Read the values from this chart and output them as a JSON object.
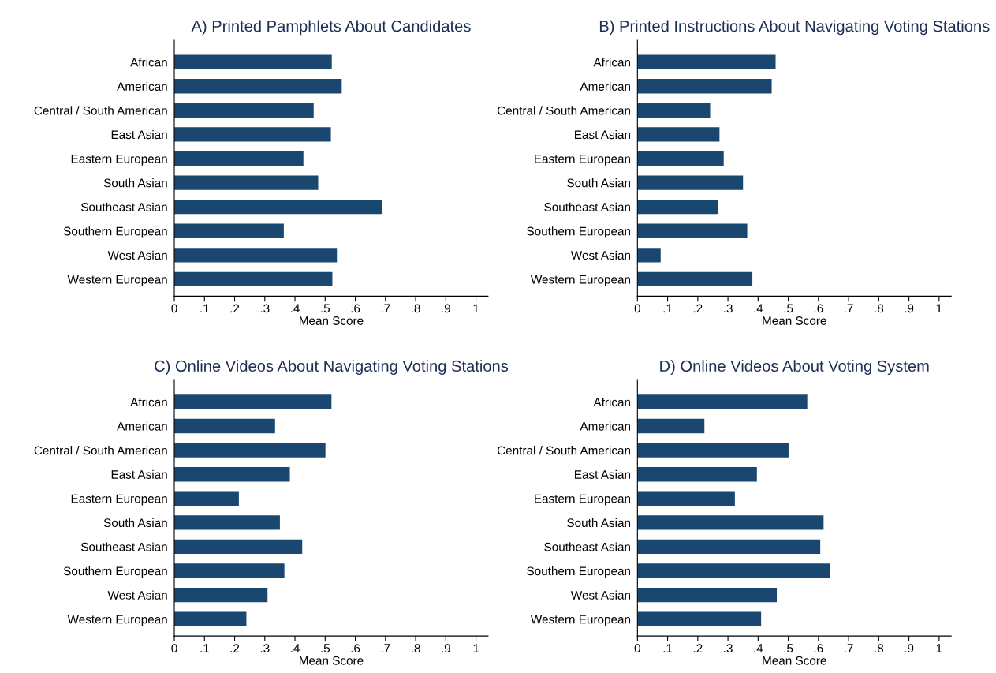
{
  "chart_data": [
    {
      "type": "bar",
      "orientation": "horizontal",
      "title": "A) Printed Pamphlets About Candidates",
      "xlabel": "Mean Score",
      "categories": [
        "African",
        "American",
        "Central / South American",
        "East Asian",
        "Eastern European",
        "South Asian",
        "Southeast Asian",
        "Southern European",
        "West Asian",
        "Western European"
      ],
      "values": [
        0.522,
        0.555,
        0.462,
        0.519,
        0.428,
        0.477,
        0.69,
        0.363,
        0.539,
        0.524
      ],
      "color": "#1a476f",
      "xlim": [
        0,
        1.04
      ],
      "xticks": [
        0,
        {
          "value": 0.1,
          "label": ".1"
        },
        {
          "value": 0.2,
          "label": ".2"
        },
        {
          "value": 0.3,
          "label": ".3"
        },
        {
          "value": 0.4,
          "label": ".4"
        },
        {
          "value": 0.5,
          "label": ".5"
        },
        {
          "value": 0.6,
          "label": ".6"
        },
        {
          "value": 0.7,
          "label": ".7"
        },
        {
          "value": 0.8,
          "label": ".8"
        },
        {
          "value": 0.9,
          "label": ".9"
        },
        1
      ],
      "grid": false
    },
    {
      "type": "bar",
      "orientation": "horizontal",
      "title": "B) Printed Instructions About Navigating Voting Stations",
      "xlabel": "Mean Score",
      "categories": [
        "African",
        "American",
        "Central / South American",
        "East Asian",
        "Eastern European",
        "South Asian",
        "Southeast Asian",
        "Southern European",
        "West Asian",
        "Western European"
      ],
      "values": [
        0.458,
        0.445,
        0.241,
        0.272,
        0.286,
        0.35,
        0.268,
        0.364,
        0.077,
        0.381
      ],
      "color": "#1a476f",
      "xlim": [
        0,
        1.04
      ],
      "xticks": [
        0,
        {
          "value": 0.1,
          "label": ".1"
        },
        {
          "value": 0.2,
          "label": ".2"
        },
        {
          "value": 0.3,
          "label": ".3"
        },
        {
          "value": 0.4,
          "label": ".4"
        },
        {
          "value": 0.5,
          "label": ".5"
        },
        {
          "value": 0.6,
          "label": ".6"
        },
        {
          "value": 0.7,
          "label": ".7"
        },
        {
          "value": 0.8,
          "label": ".8"
        },
        {
          "value": 0.9,
          "label": ".9"
        },
        1
      ],
      "grid": false
    },
    {
      "type": "bar",
      "orientation": "horizontal",
      "title": "C) Online Videos About Navigating Voting Stations",
      "xlabel": "Mean Score",
      "categories": [
        "African",
        "American",
        "Central / South American",
        "East Asian",
        "Eastern European",
        "South Asian",
        "Southeast Asian",
        "Southern European",
        "West Asian",
        "Western European"
      ],
      "values": [
        0.521,
        0.334,
        0.501,
        0.383,
        0.214,
        0.35,
        0.424,
        0.365,
        0.309,
        0.239
      ],
      "color": "#1a476f",
      "xlim": [
        0,
        1.04
      ],
      "xticks": [
        0,
        {
          "value": 0.1,
          "label": ".1"
        },
        {
          "value": 0.2,
          "label": ".2"
        },
        {
          "value": 0.3,
          "label": ".3"
        },
        {
          "value": 0.4,
          "label": ".4"
        },
        {
          "value": 0.5,
          "label": ".5"
        },
        {
          "value": 0.6,
          "label": ".6"
        },
        {
          "value": 0.7,
          "label": ".7"
        },
        {
          "value": 0.8,
          "label": ".8"
        },
        {
          "value": 0.9,
          "label": ".9"
        },
        1
      ],
      "grid": false
    },
    {
      "type": "bar",
      "orientation": "horizontal",
      "title": "D) Online Videos About Voting System",
      "xlabel": "Mean Score",
      "categories": [
        "African",
        "American",
        "Central / South American",
        "East Asian",
        "Eastern European",
        "South Asian",
        "Southeast Asian",
        "Southern European",
        "West Asian",
        "Western European"
      ],
      "values": [
        0.563,
        0.222,
        0.501,
        0.396,
        0.323,
        0.617,
        0.606,
        0.638,
        0.462,
        0.41
      ],
      "color": "#1a476f",
      "xlim": [
        0,
        1.04
      ],
      "xticks": [
        0,
        {
          "value": 0.1,
          "label": ".1"
        },
        {
          "value": 0.2,
          "label": ".2"
        },
        {
          "value": 0.3,
          "label": ".3"
        },
        {
          "value": 0.4,
          "label": ".4"
        },
        {
          "value": 0.5,
          "label": ".5"
        },
        {
          "value": 0.6,
          "label": ".6"
        },
        {
          "value": 0.7,
          "label": ".7"
        },
        {
          "value": 0.8,
          "label": ".8"
        },
        {
          "value": 0.9,
          "label": ".9"
        },
        1
      ],
      "grid": false
    }
  ]
}
